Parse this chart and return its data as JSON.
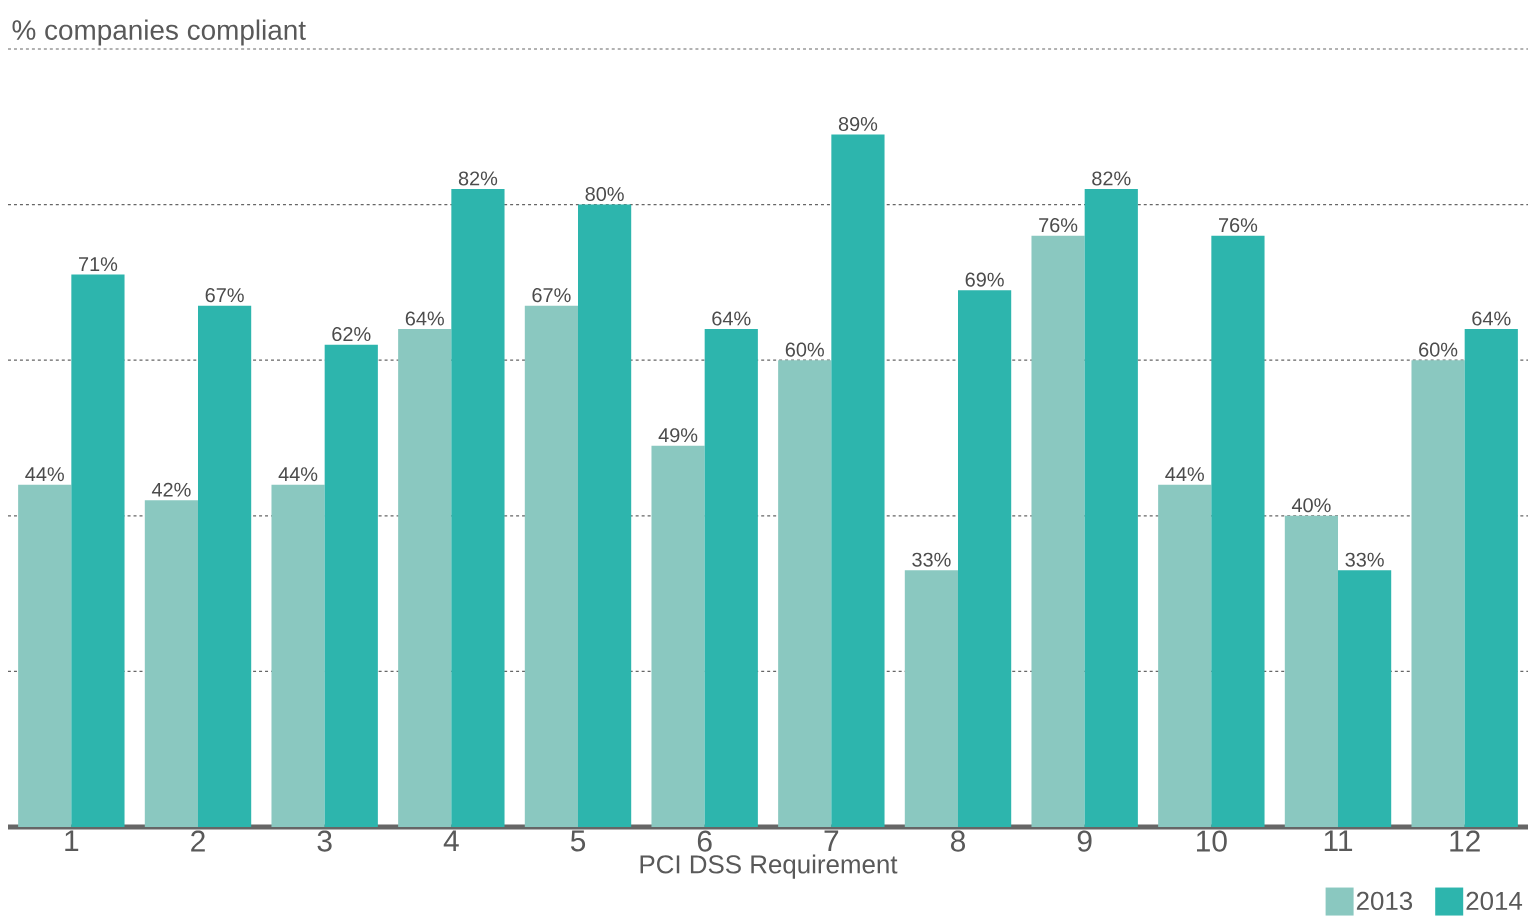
{
  "chart_data": {
    "type": "bar",
    "xlabel": "PCI DSS Requirement",
    "ylabel": "% companies compliant",
    "categories": [
      "1",
      "2",
      "3",
      "4",
      "5",
      "6",
      "7",
      "8",
      "9",
      "10",
      "11",
      "12"
    ],
    "series": [
      {
        "name": "2013",
        "color": "#8ac8c0",
        "values": [
          44,
          42,
          44,
          64,
          67,
          49,
          60,
          33,
          76,
          44,
          40,
          60
        ],
        "value_labels": [
          "44%",
          "42%",
          "44%",
          "64%",
          "67%",
          "49%",
          "60%",
          "33%",
          "76%",
          "44%",
          "40%",
          "60%"
        ]
      },
      {
        "name": "2014",
        "color": "#2db5ad",
        "values": [
          71,
          67,
          62,
          82,
          80,
          64,
          89,
          69,
          82,
          76,
          33,
          64
        ],
        "value_labels": [
          "71%",
          "67%",
          "62%",
          "82%",
          "80%",
          "64%",
          "89%",
          "69%",
          "82%",
          "76%",
          "33%",
          "64%"
        ]
      }
    ],
    "ylim": [
      0,
      100
    ],
    "yticks": [
      {
        "value": 20,
        "label": null
      },
      {
        "value": 40,
        "label": null
      },
      {
        "value": 60,
        "label": null
      },
      {
        "value": 80,
        "label": null
      },
      {
        "value": 100,
        "label": null
      }
    ],
    "grid": "y",
    "legend": "bottom right"
  }
}
